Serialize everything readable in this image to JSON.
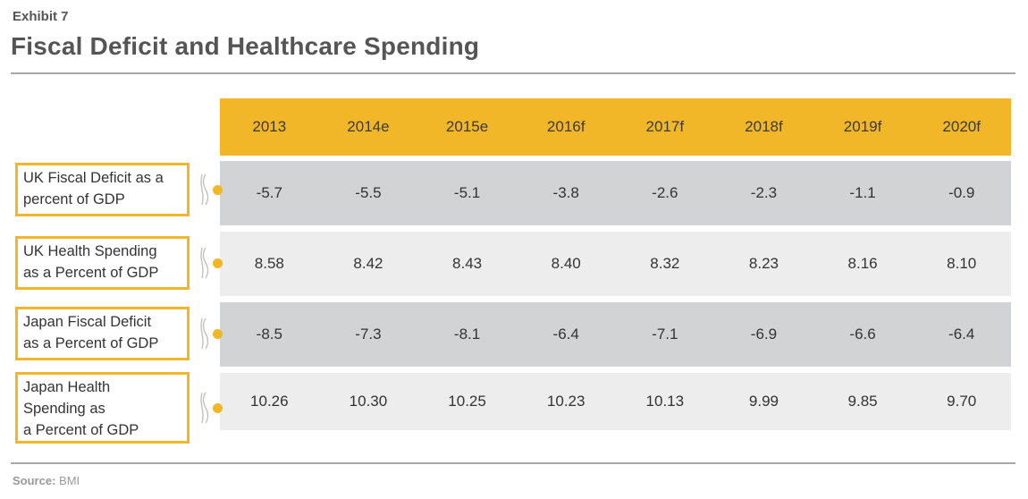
{
  "exhibit": "Exhibit 7",
  "title": "Fiscal Deficit and Healthcare Spending",
  "source_label": "Source:",
  "source_value": "BMI",
  "colors": {
    "accent": "#f2b728",
    "row_dark": "#d1d3d5",
    "row_light": "#ededed"
  },
  "chart_data": {
    "type": "table",
    "columns": [
      "2013",
      "2014e",
      "2015e",
      "2016f",
      "2017f",
      "2018f",
      "2019f",
      "2020f"
    ],
    "rows": [
      {
        "label": "UK Fiscal Deficit as a percent of GDP",
        "label_lines": [
          "UK Fiscal Deficit as a",
          "percent of GDP"
        ],
        "values": [
          "-5.7",
          "-5.5",
          "-5.1",
          "-3.8",
          "-2.6",
          "-2.3",
          "-1.1",
          "-0.9"
        ]
      },
      {
        "label": "UK Health Spending as a Percent of GDP",
        "label_lines": [
          "UK Health Spending",
          "as a Percent of GDP"
        ],
        "values": [
          "8.58",
          "8.42",
          "8.43",
          "8.40",
          "8.32",
          "8.23",
          "8.16",
          "8.10"
        ]
      },
      {
        "label": "Japan Fiscal Deficit as a Percent of GDP",
        "label_lines": [
          "Japan Fiscal Deficit",
          "as a Percent of GDP"
        ],
        "values": [
          "-8.5",
          "-7.3",
          "-8.1",
          "-6.4",
          "-7.1",
          "-6.9",
          "-6.6",
          "-6.4"
        ]
      },
      {
        "label": "Japan Health Spending as a Percent of GDP",
        "label_lines": [
          "Japan Health",
          "Spending as",
          "a Percent of GDP"
        ],
        "values": [
          "10.26",
          "10.30",
          "10.25",
          "10.23",
          "10.13",
          "9.99",
          "9.85",
          "9.70"
        ]
      }
    ]
  }
}
